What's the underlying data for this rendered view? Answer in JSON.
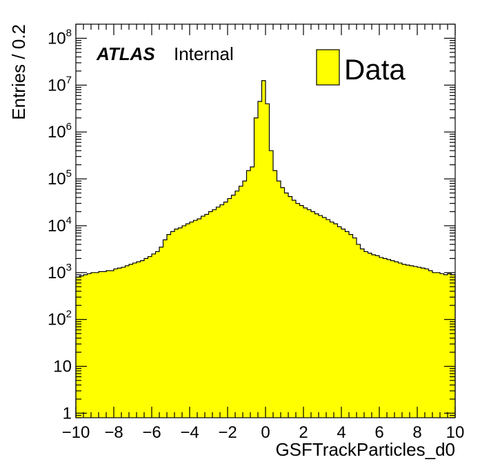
{
  "chart_data": {
    "type": "bar",
    "style": "filled-histogram",
    "xlabel": "GSFTrackParticles_d0",
    "ylabel": "Entries / 0.2",
    "xlim": [
      -10,
      10
    ],
    "ylim": [
      0.8,
      200000000
    ],
    "yscale": "log",
    "bin_width": 0.2,
    "x_ticks": [
      {
        "value": -10,
        "label": "−10"
      },
      {
        "value": -8,
        "label": "−8"
      },
      {
        "value": -6,
        "label": "−6"
      },
      {
        "value": -4,
        "label": "−4"
      },
      {
        "value": -2,
        "label": "−2"
      },
      {
        "value": 0,
        "label": "0"
      },
      {
        "value": 2,
        "label": "2"
      },
      {
        "value": 4,
        "label": "4"
      },
      {
        "value": 6,
        "label": "6"
      },
      {
        "value": 8,
        "label": "8"
      },
      {
        "value": 10,
        "label": "10"
      }
    ],
    "y_ticks": [
      {
        "value": 1,
        "base": "1",
        "exp": ""
      },
      {
        "value": 10,
        "base": "10",
        "exp": ""
      },
      {
        "value": 100,
        "base": "10",
        "exp": "2"
      },
      {
        "value": 1000,
        "base": "10",
        "exp": "3"
      },
      {
        "value": 10000,
        "base": "10",
        "exp": "4"
      },
      {
        "value": 100000,
        "base": "10",
        "exp": "5"
      },
      {
        "value": 1000000,
        "base": "10",
        "exp": "6"
      },
      {
        "value": 10000000,
        "base": "10",
        "exp": "7"
      },
      {
        "value": 100000000,
        "base": "10",
        "exp": "8"
      }
    ],
    "series": [
      {
        "name": "Data",
        "color": "#ffff00",
        "x": [
          -9.9,
          -9.7,
          -9.5,
          -9.3,
          -9.1,
          -8.9,
          -8.7,
          -8.5,
          -8.3,
          -8.1,
          -7.9,
          -7.7,
          -7.5,
          -7.3,
          -7.1,
          -6.9,
          -6.7,
          -6.5,
          -6.3,
          -6.1,
          -5.9,
          -5.7,
          -5.5,
          -5.3,
          -5.1,
          -4.9,
          -4.7,
          -4.5,
          -4.3,
          -4.1,
          -3.9,
          -3.7,
          -3.5,
          -3.3,
          -3.1,
          -2.9,
          -2.7,
          -2.5,
          -2.3,
          -2.1,
          -1.9,
          -1.7,
          -1.5,
          -1.3,
          -1.1,
          -0.9,
          -0.7,
          -0.5,
          -0.3,
          -0.1,
          0.1,
          0.3,
          0.5,
          0.7,
          0.9,
          1.1,
          1.3,
          1.5,
          1.7,
          1.9,
          2.1,
          2.3,
          2.5,
          2.7,
          2.9,
          3.1,
          3.3,
          3.5,
          3.7,
          3.9,
          4.1,
          4.3,
          4.5,
          4.7,
          4.9,
          5.1,
          5.3,
          5.5,
          5.7,
          5.9,
          6.1,
          6.3,
          6.5,
          6.7,
          6.9,
          7.1,
          7.3,
          7.5,
          7.7,
          7.9,
          8.1,
          8.3,
          8.5,
          8.7,
          8.9,
          9.1,
          9.3,
          9.5,
          9.7,
          9.9
        ],
        "values": [
          800,
          850,
          900,
          950,
          1000,
          1000,
          1050,
          1050,
          1100,
          1100,
          1200,
          1250,
          1300,
          1400,
          1500,
          1600,
          1700,
          1800,
          2000,
          2200,
          2500,
          2800,
          3500,
          5000,
          6500,
          7500,
          8500,
          9000,
          10000,
          11000,
          12000,
          13000,
          14000,
          16000,
          17500,
          20000,
          22000,
          25000,
          28000,
          32000,
          38000,
          45000,
          55000,
          70000,
          90000,
          150000,
          180000,
          2000000,
          4500000,
          12500000,
          4000000,
          400000,
          150000,
          90000,
          65000,
          50000,
          42000,
          35000,
          30000,
          27000,
          24000,
          22000,
          20000,
          18000,
          16500,
          15000,
          13500,
          12000,
          11000,
          9500,
          8500,
          7500,
          6500,
          5500,
          4000,
          3200,
          2800,
          2600,
          2400,
          2300,
          2100,
          2000,
          1900,
          1800,
          1700,
          1600,
          1500,
          1450,
          1400,
          1350,
          1300,
          1250,
          1200,
          1100,
          1000,
          1000,
          950,
          900,
          950,
          900
        ]
      }
    ],
    "legend": {
      "position": "top-right",
      "entries": [
        "Data"
      ]
    },
    "annotations": [
      {
        "text_bold": "ATLAS",
        "text": "Internal",
        "position": "top-left"
      }
    ]
  }
}
